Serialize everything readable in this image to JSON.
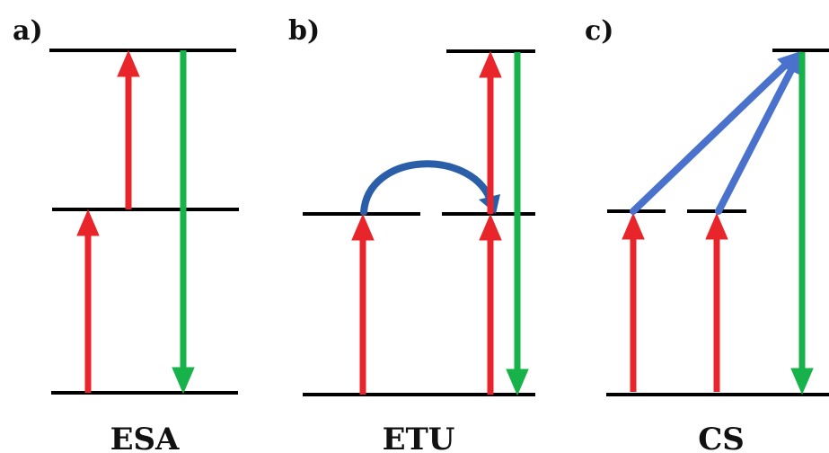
{
  "panels": [
    {
      "id": "a",
      "label": "a)",
      "mechanism": "ESA"
    },
    {
      "id": "b",
      "label": "b)",
      "mechanism": "ETU"
    },
    {
      "id": "c",
      "label": "c)",
      "mechanism": "CS"
    }
  ],
  "colors": {
    "level": "#000000",
    "excitation": "#e8252b",
    "emission": "#18b24a",
    "cooperative_transfer": "#4a72cc",
    "energy_transfer_arc": "#2a5ea8"
  }
}
